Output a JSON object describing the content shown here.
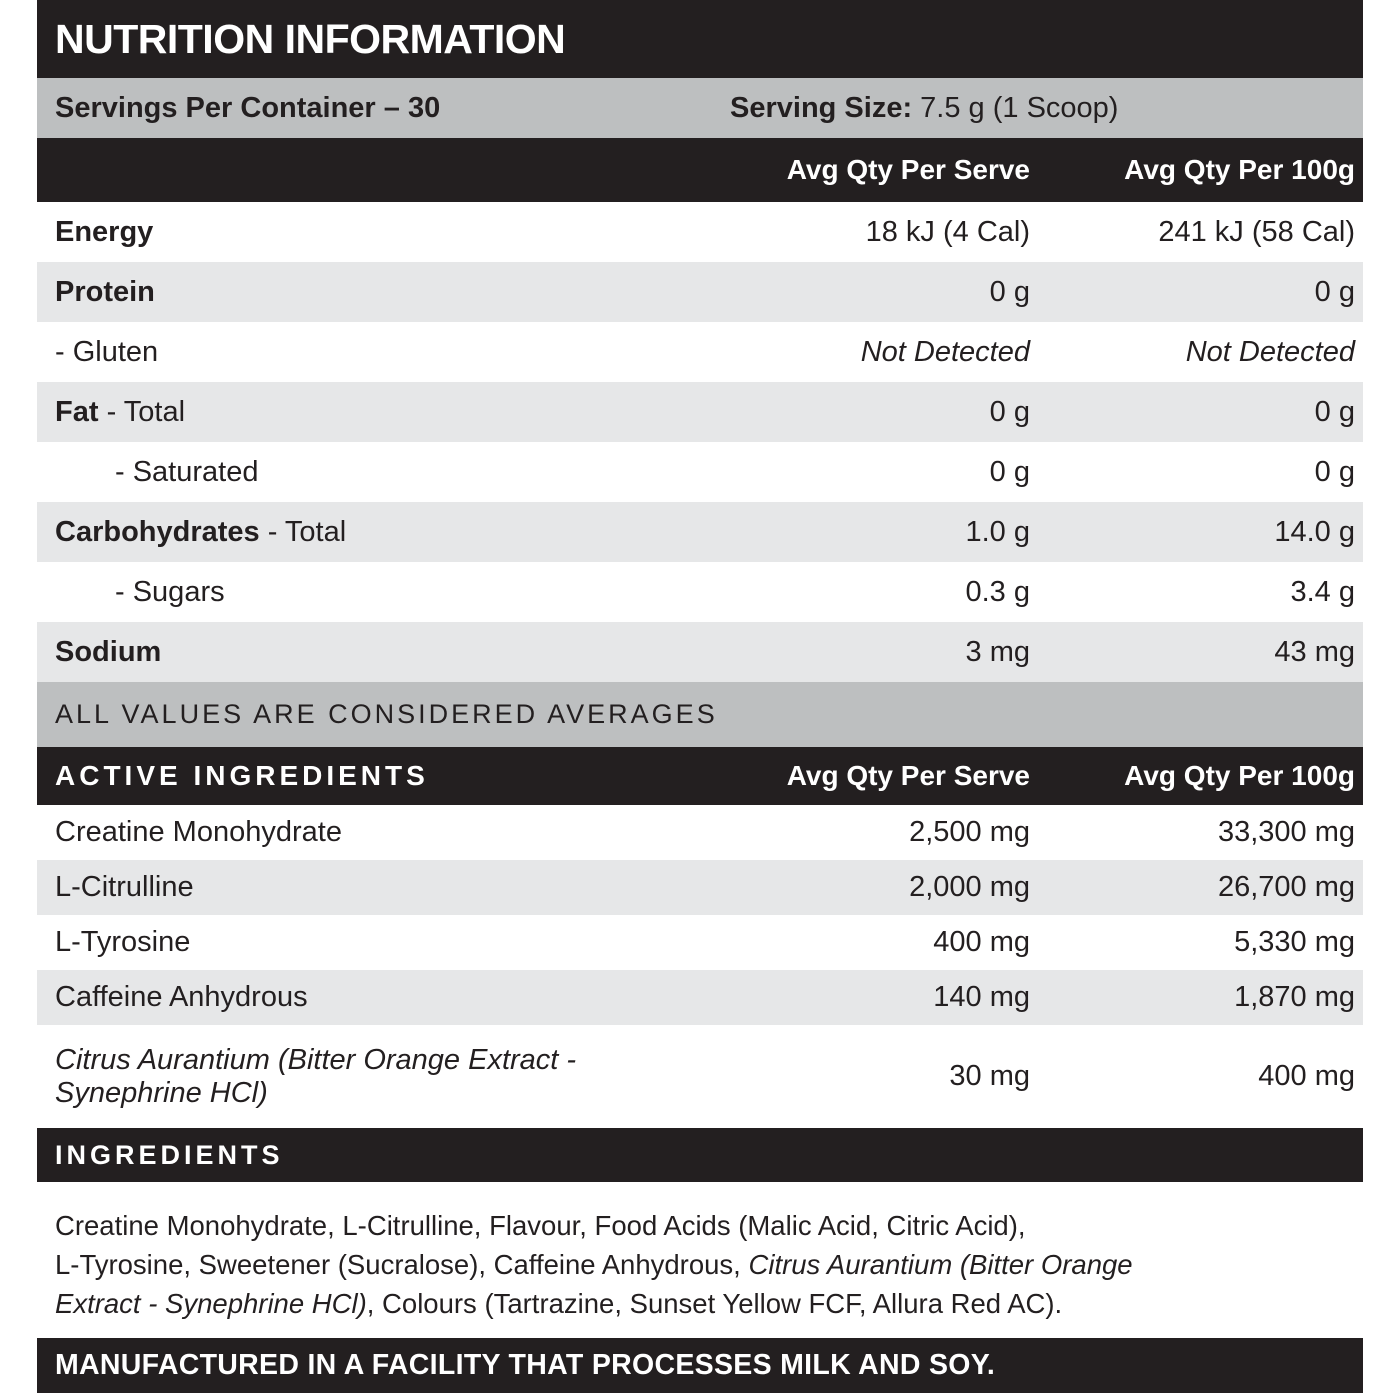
{
  "title": "NUTRITION INFORMATION",
  "servings": {
    "per_container": "Servings Per Container – 30",
    "size_label": "Serving Size:",
    "size_value": " 7.5 g (1 Scoop)"
  },
  "columns": {
    "serve": "Avg Qty Per Serve",
    "per100": "Avg Qty Per 100g"
  },
  "nutrition_rows": [
    {
      "label_bold": "Energy",
      "label_rest": "",
      "serve": "18 kJ (4 Cal)",
      "per100": "241 kJ (58 Cal)"
    },
    {
      "label_bold": "Protein",
      "label_rest": "",
      "serve": "0 g",
      "per100": "0 g"
    },
    {
      "label_bold": "",
      "label_rest": "- Gluten",
      "serve": "Not Detected",
      "per100": "Not Detected"
    },
    {
      "label_bold": "Fat",
      "label_rest": "- Total",
      "serve": "0 g",
      "per100": "0 g"
    },
    {
      "label_bold": "",
      "label_rest": "- Saturated",
      "serve": "0 g",
      "per100": "0 g"
    },
    {
      "label_bold": "Carbohydrates",
      "label_rest": "- Total",
      "serve": "1.0 g",
      "per100": "14.0 g"
    },
    {
      "label_bold": "",
      "label_rest": "- Sugars",
      "serve": "0.3 g",
      "per100": "3.4 g"
    },
    {
      "label_bold": "Sodium",
      "label_rest": "",
      "serve": "3 mg",
      "per100": "43 mg"
    }
  ],
  "averages_note": "ALL VALUES ARE CONSIDERED AVERAGES",
  "active": {
    "header": "ACTIVE INGREDIENTS",
    "rows": [
      {
        "name": "Creatine Monohydrate",
        "serve": "2,500 mg",
        "per100": "33,300 mg"
      },
      {
        "name": "L-Citrulline",
        "serve": "2,000 mg",
        "per100": "26,700 mg"
      },
      {
        "name": "L-Tyrosine",
        "serve": "400 mg",
        "per100": "5,330 mg"
      },
      {
        "name": "Caffeine Anhydrous",
        "serve": "140 mg",
        "per100": "1,870 mg"
      },
      {
        "name_line1": "Citrus Aurantium (Bitter Orange Extract -",
        "name_line2": "Synephrine HCl)",
        "serve": "30 mg",
        "per100": "400 mg"
      }
    ]
  },
  "ingredients": {
    "header": "INGREDIENTS",
    "segments": {
      "s0": "Creatine Monohydrate, L-Citrulline, Flavour, Food Acids (Malic Acid, Citric Acid),",
      "s1": "L-Tyrosine, Sweetener (Sucralose), Caffeine Anhydrous,",
      "s2": "Citrus Aurantium (Bitter Orange",
      "s3": "Extract - Synephrine HCl)",
      "s4": ", Colours (Tartrazine, Sunset Yellow FCF, Allura Red AC)."
    }
  },
  "footer": "MANUFACTURED IN A FACILITY THAT PROCESSES MILK AND SOY.",
  "colors": {
    "ink": "#231f20",
    "silver": "#bdbfc0",
    "stripe": "#e6e7e8",
    "paper": "#ffffff"
  }
}
